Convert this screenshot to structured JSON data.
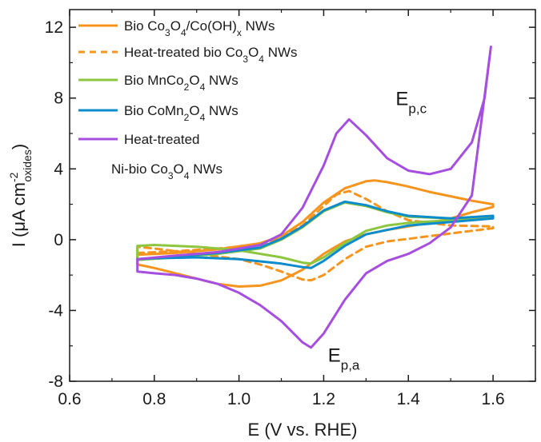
{
  "chart_data": {
    "type": "line",
    "xlabel": "E (V vs. RHE)",
    "ylabel": {
      "base": "I (",
      "mu": "μ",
      "unit": "A cm",
      "sup": "-2",
      "sub": "oxides",
      "close": ")"
    },
    "xlim": [
      0.6,
      1.7
    ],
    "ylim": [
      -8,
      13
    ],
    "x_ticks": [
      0.6,
      0.8,
      1.0,
      1.2,
      1.4,
      1.6
    ],
    "x_tick_labels": [
      "0.6",
      "0.8",
      "1.0",
      "1.2",
      "1.4",
      "1.6"
    ],
    "y_ticks": [
      -8,
      -4,
      0,
      4,
      8,
      12
    ],
    "y_tick_labels": [
      "-8",
      "-4",
      "0",
      "4",
      "8",
      "12"
    ],
    "grid": false,
    "legend_position": "top-left",
    "annotations": [
      {
        "base": "E",
        "sub": "p,c",
        "x": 1.37,
        "y": 7.6
      },
      {
        "base": "E",
        "sub": "p,a",
        "x": 1.21,
        "y": -6.9
      }
    ],
    "series": [
      {
        "color": "#f7941d",
        "dash": "solid",
        "legend": [
          {
            "t": "Bio Co"
          },
          {
            "t": "3",
            "s": "sub"
          },
          {
            "t": "O"
          },
          {
            "t": "4",
            "s": "sub"
          },
          {
            "t": "/Co(OH)"
          },
          {
            "t": "x",
            "s": "sub"
          },
          {
            "t": " NWs"
          }
        ],
        "x": [
          0.76,
          0.85,
          0.95,
          1.05,
          1.1,
          1.15,
          1.2,
          1.25,
          1.3,
          1.32,
          1.35,
          1.4,
          1.45,
          1.5,
          1.55,
          1.6,
          1.6,
          1.55,
          1.5,
          1.45,
          1.4,
          1.35,
          1.3,
          1.25,
          1.2,
          1.15,
          1.1,
          1.05,
          1.0,
          0.95,
          0.9,
          0.85,
          0.8,
          0.76,
          0.76
        ],
        "y": [
          -0.85,
          -0.75,
          -0.55,
          -0.2,
          0.2,
          1.0,
          2.1,
          2.9,
          3.3,
          3.35,
          3.25,
          3.0,
          2.7,
          2.45,
          2.2,
          2.0,
          1.85,
          1.55,
          1.2,
          0.95,
          0.75,
          0.55,
          0.3,
          -0.1,
          -0.8,
          -1.7,
          -2.3,
          -2.6,
          -2.65,
          -2.5,
          -2.2,
          -1.9,
          -1.6,
          -1.4,
          -0.85
        ]
      },
      {
        "color": "#f7941d",
        "dash": "dashed",
        "legend": [
          {
            "t": "Heat-treated bio Co"
          },
          {
            "t": "3",
            "s": "sub"
          },
          {
            "t": "O"
          },
          {
            "t": "4",
            "s": "sub"
          },
          {
            "t": " NWs"
          }
        ],
        "x": [
          0.76,
          0.85,
          0.95,
          1.05,
          1.1,
          1.15,
          1.2,
          1.23,
          1.26,
          1.3,
          1.35,
          1.4,
          1.5,
          1.6,
          1.6,
          1.5,
          1.4,
          1.35,
          1.3,
          1.25,
          1.2,
          1.17,
          1.15,
          1.1,
          1.05,
          1.0,
          0.9,
          0.8,
          0.76,
          0.76
        ],
        "y": [
          -0.75,
          -0.65,
          -0.5,
          -0.3,
          0.1,
          0.8,
          1.9,
          2.55,
          2.75,
          2.3,
          1.6,
          1.1,
          0.8,
          0.75,
          0.65,
          0.35,
          0.05,
          -0.1,
          -0.4,
          -1.1,
          -2.0,
          -2.3,
          -2.25,
          -1.8,
          -1.4,
          -1.1,
          -0.8,
          -0.5,
          -0.4,
          -0.75
        ]
      },
      {
        "color": "#8dc63f",
        "dash": "solid",
        "legend": [
          {
            "t": "Bio MnCo"
          },
          {
            "t": "2",
            "s": "sub"
          },
          {
            "t": "O"
          },
          {
            "t": "4",
            "s": "sub"
          },
          {
            "t": " NWs"
          }
        ],
        "x": [
          0.76,
          0.85,
          0.95,
          1.05,
          1.1,
          1.15,
          1.2,
          1.25,
          1.3,
          1.35,
          1.4,
          1.5,
          1.6,
          1.6,
          1.5,
          1.4,
          1.35,
          1.3,
          1.25,
          1.2,
          1.17,
          1.15,
          1.1,
          1.0,
          0.9,
          0.8,
          0.76,
          0.76
        ],
        "y": [
          -1.15,
          -1.0,
          -0.8,
          -0.5,
          0.0,
          0.7,
          1.6,
          2.1,
          1.9,
          1.55,
          1.3,
          1.2,
          1.3,
          1.25,
          1.1,
          0.95,
          0.8,
          0.5,
          -0.2,
          -1.0,
          -1.35,
          -1.3,
          -1.0,
          -0.6,
          -0.4,
          -0.3,
          -0.35,
          -1.15
        ]
      },
      {
        "color": "#0d8ccb",
        "dash": "solid",
        "legend": [
          {
            "t": "Bio CoMn"
          },
          {
            "t": "2",
            "s": "sub"
          },
          {
            "t": "O"
          },
          {
            "t": "4",
            "s": "sub"
          },
          {
            "t": " NWs"
          }
        ],
        "x": [
          0.76,
          0.85,
          0.95,
          1.05,
          1.1,
          1.15,
          1.2,
          1.25,
          1.3,
          1.35,
          1.4,
          1.5,
          1.6,
          1.6,
          1.5,
          1.4,
          1.3,
          1.25,
          1.2,
          1.17,
          1.15,
          1.1,
          1.0,
          0.9,
          0.8,
          0.76,
          0.76
        ],
        "y": [
          -1.1,
          -0.95,
          -0.75,
          -0.45,
          0.05,
          0.75,
          1.65,
          2.15,
          1.95,
          1.6,
          1.35,
          1.2,
          1.35,
          1.2,
          1.0,
          0.8,
          0.3,
          -0.35,
          -1.2,
          -1.6,
          -1.55,
          -1.35,
          -1.1,
          -1.0,
          -1.05,
          -1.1,
          -1.1
        ]
      },
      {
        "color": "#a64ee0",
        "dash": "solid",
        "legend": [
          {
            "t": "Heat-treated"
          }
        ],
        "legend2": [
          {
            "t": "Ni-bio Co"
          },
          {
            "t": "3",
            "s": "sub"
          },
          {
            "t": "O"
          },
          {
            "t": "4",
            "s": "sub"
          },
          {
            "t": " NWs"
          }
        ],
        "x": [
          0.76,
          0.85,
          0.95,
          1.05,
          1.1,
          1.15,
          1.2,
          1.23,
          1.26,
          1.3,
          1.35,
          1.4,
          1.45,
          1.5,
          1.55,
          1.58,
          1.595,
          1.55,
          1.5,
          1.45,
          1.4,
          1.35,
          1.3,
          1.25,
          1.2,
          1.17,
          1.15,
          1.1,
          1.05,
          1.0,
          0.95,
          0.9,
          0.85,
          0.8,
          0.76,
          0.76
        ],
        "y": [
          -1.1,
          -0.9,
          -0.7,
          -0.3,
          0.3,
          1.8,
          4.2,
          6.0,
          6.8,
          5.9,
          4.6,
          3.9,
          3.7,
          4.0,
          5.5,
          8.0,
          10.9,
          2.5,
          0.7,
          -0.2,
          -0.8,
          -1.2,
          -1.9,
          -3.4,
          -5.3,
          -6.1,
          -5.8,
          -4.6,
          -3.7,
          -3.0,
          -2.5,
          -2.2,
          -2.0,
          -1.9,
          -1.8,
          -1.1
        ]
      }
    ]
  }
}
